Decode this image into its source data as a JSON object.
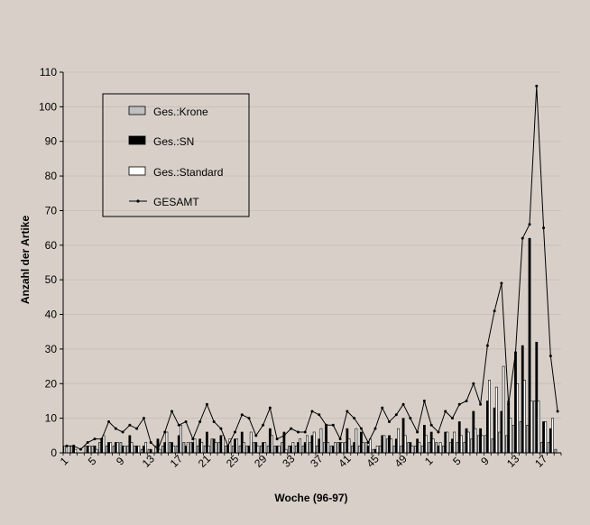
{
  "colors": {
    "background": "#d8d0c8",
    "krone": "#c0c0c0",
    "sn": "#000000",
    "standard": "#ffffff",
    "gesamt": "#000000",
    "grid": "#c8c0b8"
  },
  "chart_data": {
    "type": "bar",
    "title": "",
    "xlabel": "Woche (96-97)",
    "ylabel": "Anzahl der Artike",
    "ylim": [
      0,
      110
    ],
    "yticks": [
      0,
      10,
      20,
      30,
      40,
      50,
      60,
      70,
      80,
      90,
      100,
      110
    ],
    "grid": true,
    "legend_position": "top-left",
    "tick_labels": [
      "1",
      "5",
      "9",
      "13",
      "17",
      "21",
      "25",
      "29",
      "33",
      "37",
      "41",
      "45",
      "49",
      "1",
      "5",
      "9",
      "13",
      "17"
    ],
    "categories": [
      "1",
      "2",
      "3",
      "4",
      "5",
      "6",
      "7",
      "8",
      "9",
      "10",
      "11",
      "12",
      "13",
      "14",
      "15",
      "16",
      "17",
      "18",
      "19",
      "20",
      "21",
      "22",
      "23",
      "24",
      "25",
      "26",
      "27",
      "28",
      "29",
      "30",
      "31",
      "32",
      "33",
      "34",
      "35",
      "36",
      "37",
      "38",
      "39",
      "40",
      "41",
      "42",
      "43",
      "44",
      "45",
      "46",
      "47",
      "48",
      "49",
      "50",
      "51",
      "52",
      "1",
      "2",
      "3",
      "4",
      "5",
      "6",
      "7",
      "8",
      "9",
      "10",
      "11",
      "12",
      "13",
      "14",
      "15",
      "16",
      "17",
      "18",
      "19"
    ],
    "series": [
      {
        "name": "Ges.:Krone",
        "kind": "bar",
        "values": [
          2,
          2,
          0,
          2,
          2,
          3,
          2,
          2,
          3,
          2,
          2,
          1,
          1,
          2,
          2,
          3,
          2,
          3,
          3,
          2,
          2,
          4,
          3,
          2,
          2,
          2,
          2,
          3,
          2,
          2,
          2,
          3,
          2,
          2,
          2,
          3,
          2,
          3,
          2,
          3,
          3,
          2,
          2,
          3,
          1,
          2,
          4,
          2,
          2,
          3,
          2,
          2,
          3,
          3,
          2,
          3,
          3,
          3,
          4,
          5,
          5,
          4,
          6,
          5,
          8,
          9,
          8,
          15,
          3,
          3,
          1
        ]
      },
      {
        "name": "Ges.:SN",
        "kind": "bar",
        "values": [
          0,
          2,
          0,
          2,
          2,
          4,
          3,
          3,
          2,
          5,
          2,
          2,
          1,
          4,
          3,
          3,
          5,
          2,
          3,
          4,
          6,
          4,
          5,
          2,
          4,
          6,
          2,
          3,
          3,
          7,
          2,
          6,
          2,
          3,
          3,
          5,
          4,
          8,
          2,
          3,
          7,
          3,
          6,
          2,
          1,
          5,
          5,
          4,
          10,
          3,
          4,
          8,
          6,
          2,
          6,
          4,
          9,
          7,
          12,
          7,
          15,
          13,
          12,
          15,
          29,
          31,
          62,
          32,
          9,
          7,
          0
        ]
      },
      {
        "name": "Ges.:Standard",
        "kind": "bar",
        "values": [
          2,
          1,
          0,
          2,
          1,
          5,
          3,
          3,
          2,
          3,
          2,
          3,
          0,
          1,
          6,
          2,
          8,
          3,
          4,
          3,
          2,
          3,
          5,
          4,
          4,
          3,
          6,
          2,
          3,
          5,
          2,
          1,
          3,
          4,
          5,
          6,
          7,
          3,
          3,
          3,
          4,
          7,
          3,
          4,
          2,
          5,
          4,
          7,
          5,
          2,
          3,
          5,
          4,
          3,
          6,
          6,
          5,
          6,
          7,
          5,
          21,
          19,
          25,
          10,
          20,
          21,
          15,
          15,
          9,
          10,
          0
        ]
      },
      {
        "name": "GESAMT",
        "kind": "line",
        "values": [
          2,
          2,
          1,
          3,
          4,
          4,
          9,
          7,
          6,
          8,
          7,
          10,
          3,
          1,
          6,
          12,
          8,
          9,
          4,
          9,
          14,
          9,
          7,
          2,
          6,
          11,
          10,
          5,
          8,
          13,
          4,
          5,
          7,
          6,
          6,
          12,
          11,
          8,
          8,
          4,
          12,
          10,
          7,
          3,
          7,
          13,
          9,
          11,
          14,
          10,
          6,
          15,
          8,
          6,
          12,
          10,
          14,
          15,
          20,
          14,
          31,
          41,
          49,
          14,
          29,
          62,
          66,
          106,
          65,
          28,
          12
        ]
      }
    ]
  }
}
